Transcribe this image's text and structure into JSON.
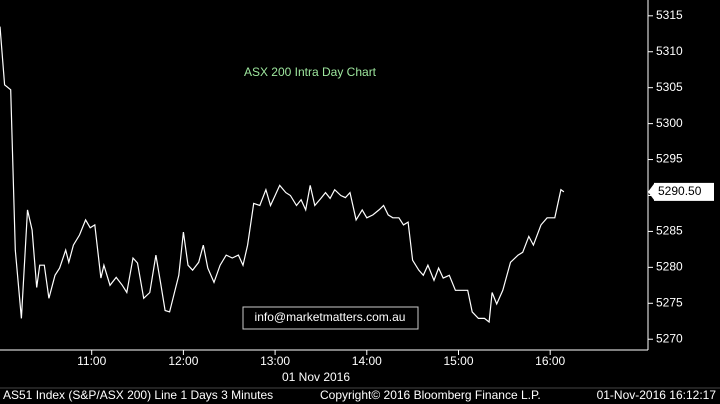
{
  "chart_data": {
    "type": "line",
    "title": "ASX 200 Intra Day Chart",
    "watermark": "info@marketmatters.com.au",
    "date_label": "01 Nov 2016",
    "footer": [
      "AS51 Index (S&P/ASX 200) Line 1 Days 3 Minutes",
      "Copyright© 2016 Bloomberg Finance L.P.",
      "01-Nov-2016 16:12:17"
    ],
    "last_price": {
      "value": 5290.5,
      "label": "5290.50"
    },
    "x": [
      "10:00",
      "10:03",
      "10:07",
      "10:10",
      "10:14",
      "10:18",
      "10:21",
      "10:24",
      "10:26",
      "10:29",
      "10:32",
      "10:36",
      "10:39",
      "10:43",
      "10:45",
      "10:48",
      "10:52",
      "10:56",
      "10:59",
      "11:02",
      "11:06",
      "11:08",
      "11:12",
      "11:16",
      "11:20",
      "11:23",
      "11:27",
      "11:30",
      "11:34",
      "11:38",
      "11:42",
      "11:45",
      "11:48",
      "11:51",
      "11:57",
      "12:00",
      "12:03",
      "12:06",
      "12:10",
      "12:13",
      "12:16",
      "12:20",
      "12:24",
      "12:28",
      "12:32",
      "12:36",
      "12:39",
      "12:42",
      "12:46",
      "12:50",
      "12:54",
      "12:57",
      "13:00",
      "13:03",
      "13:07",
      "13:10",
      "13:14",
      "13:17",
      "13:20",
      "13:23",
      "13:26",
      "13:30",
      "13:33",
      "13:36",
      "13:39",
      "13:43",
      "13:46",
      "13:49",
      "13:53",
      "13:57",
      "14:00",
      "14:04",
      "14:08",
      "14:11",
      "14:14",
      "14:17",
      "14:21",
      "14:24",
      "14:27",
      "14:30",
      "14:34",
      "14:37",
      "14:40",
      "14:44",
      "14:47",
      "14:50",
      "14:54",
      "14:58",
      "15:01",
      "15:06",
      "15:09",
      "15:13",
      "15:17",
      "15:20",
      "15:22",
      "15:25",
      "15:29",
      "15:34",
      "15:39",
      "15:42",
      "15:46",
      "15:49",
      "15:54",
      "15:58",
      "16:03",
      "16:07",
      "16:09"
    ],
    "series": [
      {
        "name": "AS51 Index",
        "color": "#ffffff",
        "values": [
          5313.5,
          5305.4,
          5304.7,
          5282.4,
          5272.9,
          5288,
          5285.2,
          5277.2,
          5280.3,
          5280.3,
          5275.7,
          5278.9,
          5279.9,
          5282.4,
          5280.7,
          5283.1,
          5284.5,
          5286.6,
          5285.5,
          5285.9,
          5278.5,
          5280.3,
          5277.5,
          5278.6,
          5277.5,
          5276.5,
          5281.3,
          5280.6,
          5275.7,
          5276.5,
          5281.7,
          5277.9,
          5274,
          5273.8,
          5278.9,
          5284.9,
          5280.3,
          5279.6,
          5280.7,
          5283.1,
          5279.9,
          5277.9,
          5280.3,
          5281.7,
          5281.3,
          5281.7,
          5280.3,
          5283.1,
          5288.9,
          5288.6,
          5290.8,
          5288.6,
          5290,
          5291.4,
          5290.4,
          5290,
          5288.6,
          5289.4,
          5288,
          5291.4,
          5288.6,
          5289.6,
          5290.4,
          5289.6,
          5290.8,
          5290,
          5289.7,
          5290.4,
          5286.6,
          5288,
          5286.9,
          5287.3,
          5288,
          5288.6,
          5287.3,
          5286.9,
          5286.9,
          5285.9,
          5286.3,
          5281,
          5279.6,
          5278.9,
          5280.3,
          5278.2,
          5279.9,
          5278.5,
          5278.9,
          5276.8,
          5276.8,
          5276.8,
          5273.8,
          5272.9,
          5272.9,
          5272.4,
          5276.5,
          5274.9,
          5276.8,
          5280.7,
          5281.7,
          5282.1,
          5284.3,
          5283.1,
          5285.9,
          5286.9,
          5286.9,
          5290.8,
          5290.5
        ]
      }
    ],
    "xlim": [
      "10:00",
      "17:04"
    ],
    "xticks": [
      "11:00",
      "12:00",
      "13:00",
      "14:00",
      "15:00",
      "16:00"
    ],
    "ylim": [
      5268.5,
      5317.2
    ],
    "yticks": [
      5270,
      5275,
      5280,
      5285,
      5290,
      5295,
      5300,
      5305,
      5310,
      5315
    ]
  }
}
